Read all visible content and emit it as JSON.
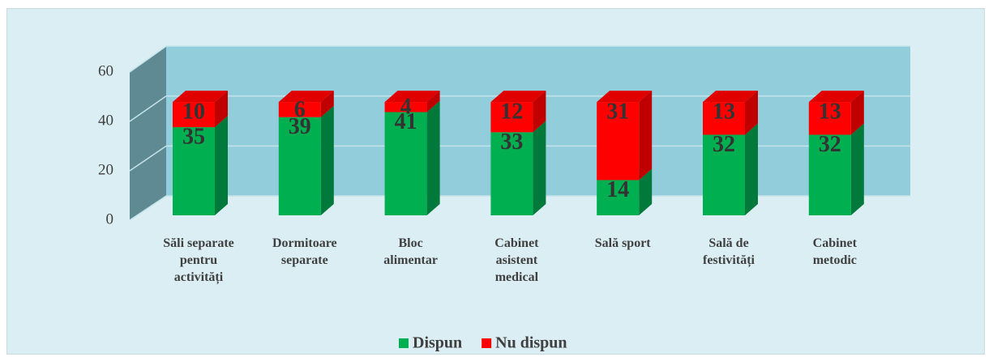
{
  "chart_data": {
    "type": "bar3d_stacked",
    "categories": [
      "Săli separate\npentru\nactivități",
      "Dormitoare\nseparate",
      "Bloc\nalimentar",
      "Cabinet\nasistent\nmedical",
      "Sală sport",
      "Sală de\nfestivități",
      "Cabinet\nmetodic"
    ],
    "series": [
      {
        "name": "Dispun",
        "color": "#00b050",
        "values": [
          35,
          39,
          41,
          33,
          14,
          32,
          32
        ]
      },
      {
        "name": "Nu dispun",
        "color": "#ff0000",
        "values": [
          10,
          6,
          4,
          12,
          31,
          13,
          13
        ]
      }
    ],
    "ylim": [
      0,
      60
    ],
    "yticks": [
      0,
      20,
      40,
      60
    ],
    "grid": true,
    "legend": "bottom"
  }
}
